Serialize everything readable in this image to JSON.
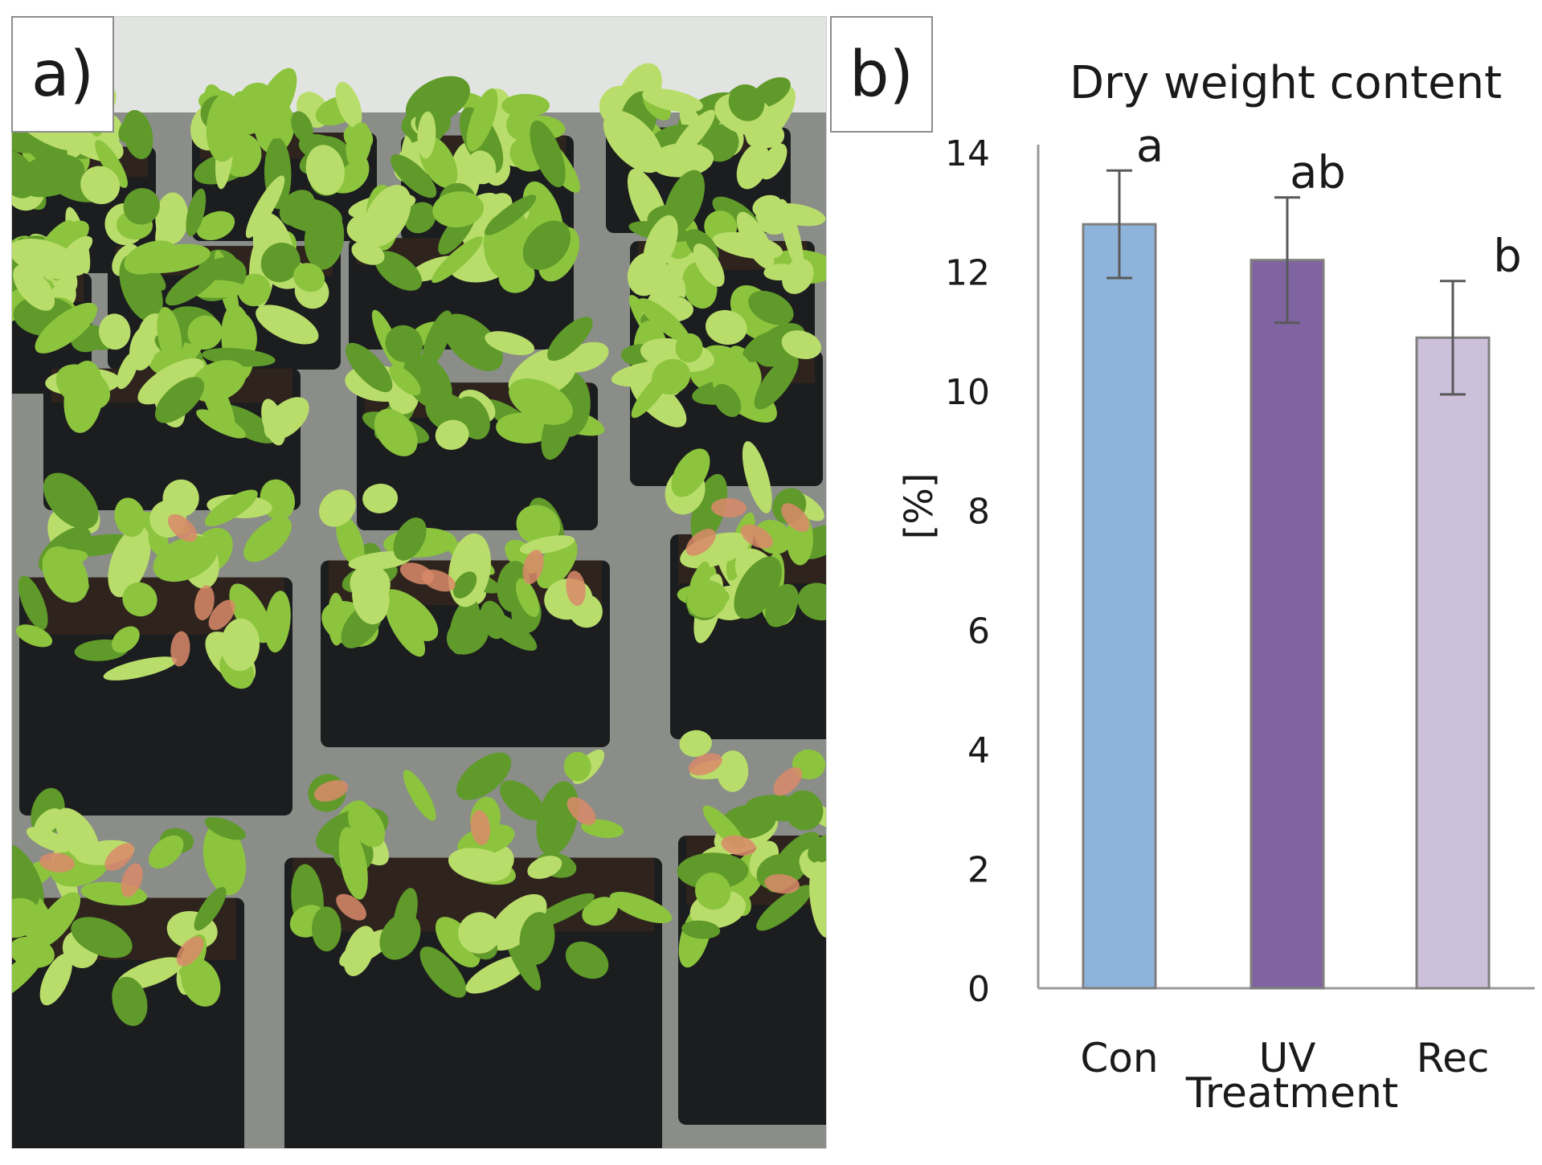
{
  "panels": {
    "photo_label": "a)",
    "chart_label": "b)"
  },
  "photo": {
    "colors": {
      "background": "#8a8d88",
      "pot": "#1c1d1f",
      "soil": "#2e241d",
      "leaf_light": "#b9dd6a",
      "leaf_mid": "#8cc43e",
      "leaf_dark": "#5f9a2a",
      "trap_interior": "#d98a6a",
      "wall": "#e2e4e1"
    }
  },
  "chart_data": {
    "type": "bar",
    "title": "Dry weight content",
    "xlabel": "Treatment",
    "ylabel": "[%]",
    "categories": [
      "Con",
      "UV",
      "Rec"
    ],
    "values": [
      12.8,
      12.2,
      10.9
    ],
    "errors": [
      0.9,
      1.05,
      0.95
    ],
    "significance_letters": [
      "a",
      "ab",
      "b"
    ],
    "colors": [
      "#8fb4dc",
      "#8064a2",
      "#ccc0da"
    ],
    "edge_color": "#7f7f7f",
    "ylim": [
      0,
      14
    ],
    "yticks": [
      0,
      2,
      4,
      6,
      8,
      10,
      12,
      14
    ],
    "grid": false,
    "legend": "none"
  }
}
